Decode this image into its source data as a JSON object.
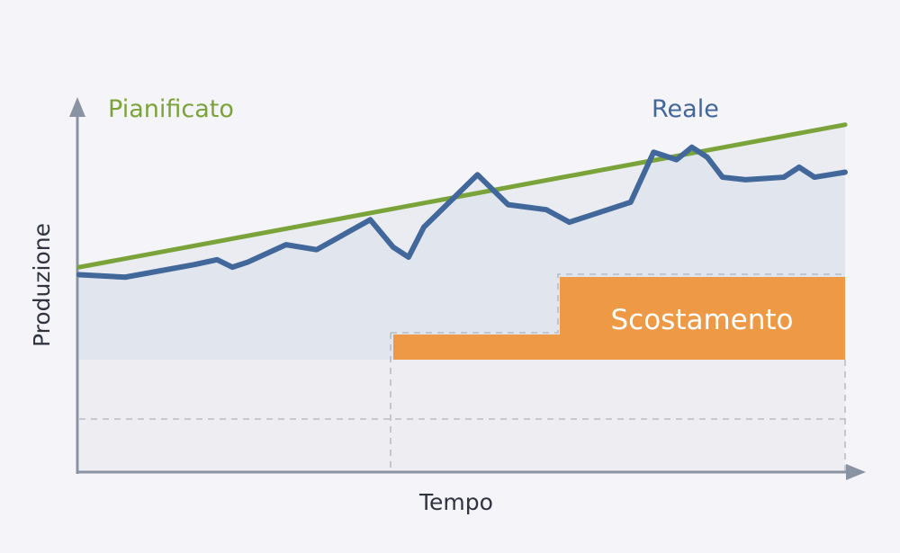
{
  "chart_data": {
    "type": "line",
    "title": "",
    "xlabel": "Tempo",
    "ylabel": "Produzione",
    "xlim": [
      0,
      100
    ],
    "ylim": [
      0,
      100
    ],
    "grid": false,
    "series": [
      {
        "name": "Pianificato",
        "color": "#7aa33a",
        "x": [
          0,
          100
        ],
        "y": [
          37,
          94
        ]
      },
      {
        "name": "Reale",
        "color": "#41679b",
        "x": [
          0,
          6,
          15,
          18,
          20,
          22,
          27,
          31,
          38,
          41,
          43,
          45,
          52,
          56,
          61,
          64,
          66,
          70,
          72,
          75,
          78,
          80,
          82,
          84,
          87,
          92,
          94,
          96,
          98,
          100
        ],
        "y": [
          34,
          33,
          38,
          40,
          37,
          39,
          46,
          44,
          56,
          45,
          41,
          53,
          74,
          62,
          60,
          55,
          57,
          61,
          63,
          83,
          80,
          85,
          81,
          73,
          72,
          73,
          77,
          73,
          74,
          75
        ]
      }
    ],
    "annotations": [
      {
        "label": "Scostamento",
        "color": "#ee9945"
      }
    ]
  }
}
